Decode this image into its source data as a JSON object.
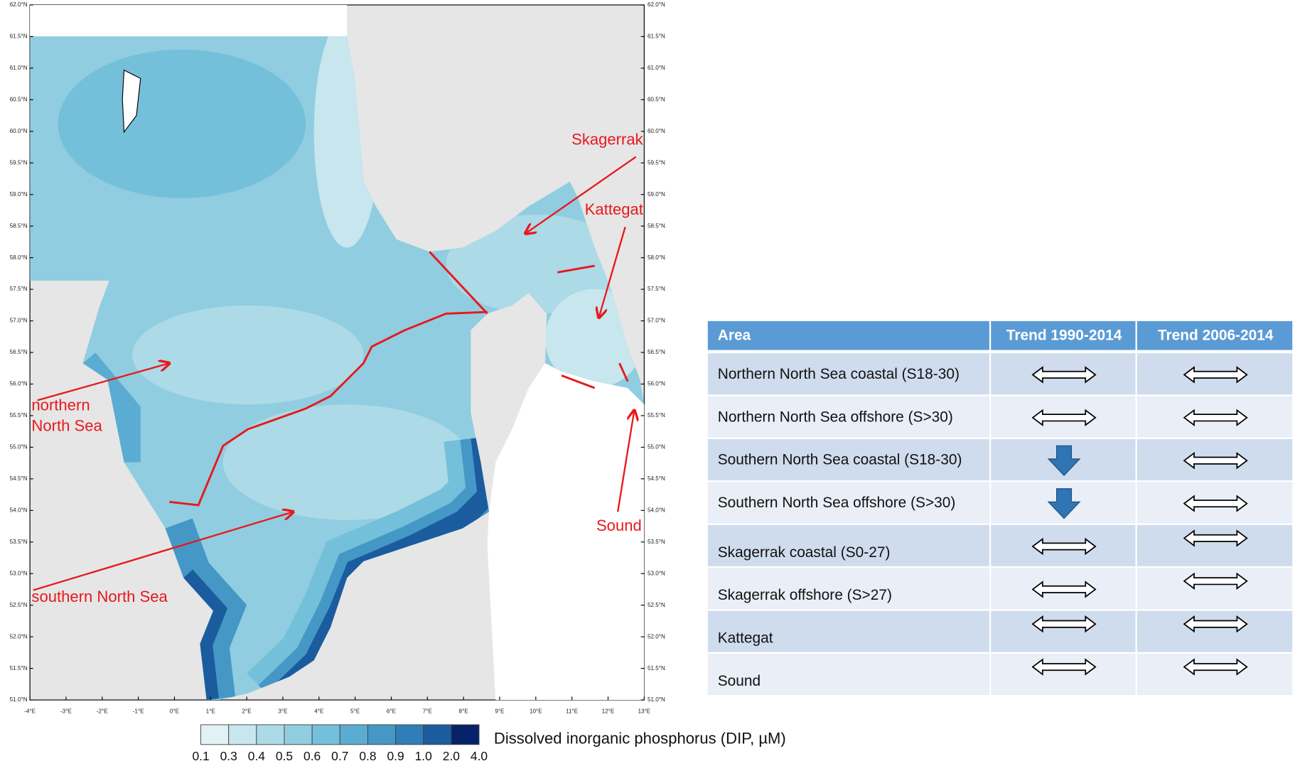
{
  "map": {
    "lat_labels": [
      "62.0°N",
      "61.5°N",
      "61.0°N",
      "60.5°N",
      "60.0°N",
      "59.5°N",
      "59.0°N",
      "58.5°N",
      "58.0°N",
      "57.5°N",
      "57.0°N",
      "56.5°N",
      "56.0°N",
      "55.5°N",
      "55.0°N",
      "54.5°N",
      "54.0°N",
      "53.5°N",
      "53.0°N",
      "52.5°N",
      "52.0°N",
      "51.5°N",
      "51.0°N"
    ],
    "lon_labels": [
      "-4°E",
      "-3°E",
      "-2°E",
      "-1°E",
      "0°E",
      "1°E",
      "2°E",
      "3°E",
      "4°E",
      "5°E",
      "6°E",
      "7°E",
      "8°E",
      "9°E",
      "10°E",
      "11°E",
      "12°E",
      "13°E"
    ],
    "skagerrak": "Skagerrak",
    "kattegat": "Kattegat",
    "northern": [
      "northern",
      "North Sea"
    ],
    "southern": "southern North Sea",
    "sound": "Sound"
  },
  "legend": {
    "title": "Dissolved inorganic phosphorus (DIP, µM)",
    "labels": [
      "0.1",
      "0.3",
      "0.4",
      "0.5",
      "0.6",
      "0.7",
      "0.8",
      "0.9",
      "1.0",
      "2.0",
      "4.0"
    ],
    "colors": [
      "#e2f1f4",
      "#c8e6ee",
      "#acdae7",
      "#90cde0",
      "#74c0da",
      "#5aacd2",
      "#4598c5",
      "#2f7eb7",
      "#1b5c9f",
      "#08226a"
    ]
  },
  "table": {
    "header": [
      "Area",
      "Trend 1990-2014",
      "Trend 2006-2014"
    ],
    "rows": [
      "Northern North Sea coastal (S18-30)",
      "Northern North Sea offshore (S>30)",
      "Southern North Sea coastal (S18-30)",
      "Southern North Sea offshore (S>30)",
      "Skagerrak coastal (S0-27)",
      "Skagerrak offshore (S>27)",
      "Kattegat",
      "Sound"
    ]
  }
}
